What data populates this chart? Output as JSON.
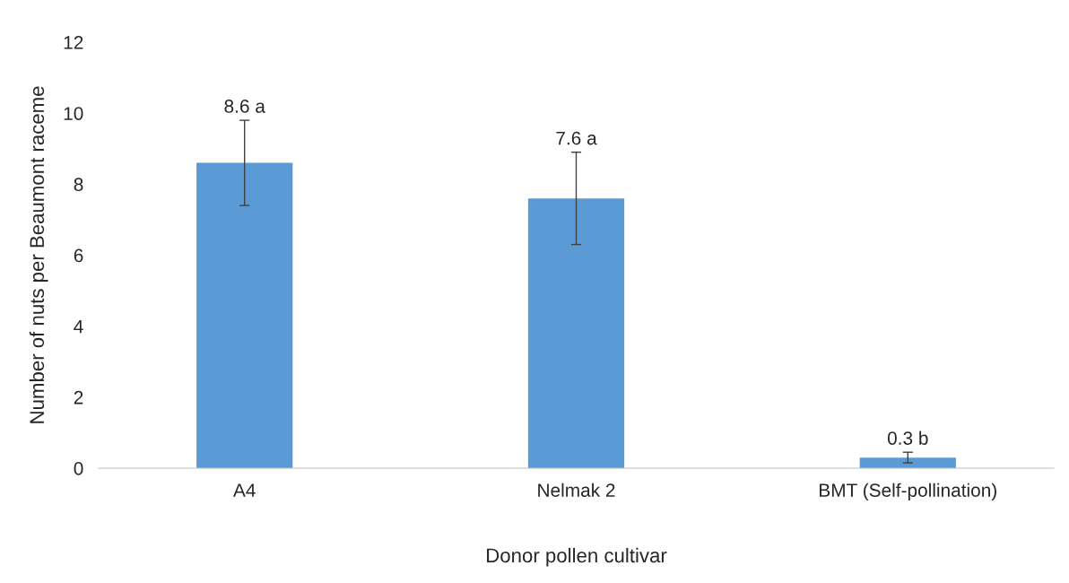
{
  "chart_data": {
    "type": "bar",
    "xlabel": "Donor pollen cultivar",
    "ylabel": "Number of nuts per Beaumont raceme",
    "categories": [
      "A4",
      "Nelmak 2",
      "BMT (Self-pollination)"
    ],
    "values": [
      8.6,
      7.6,
      0.3
    ],
    "color": "#5b9bd5",
    "errors": [
      1.2,
      1.3,
      0.15
    ],
    "value_labels": [
      "8.6 a",
      "7.6 a",
      "0.3 b"
    ],
    "ylim": [
      0,
      12
    ],
    "yticks": [
      0,
      2,
      4,
      6,
      8,
      10,
      12
    ],
    "grid": false,
    "legend": false
  }
}
